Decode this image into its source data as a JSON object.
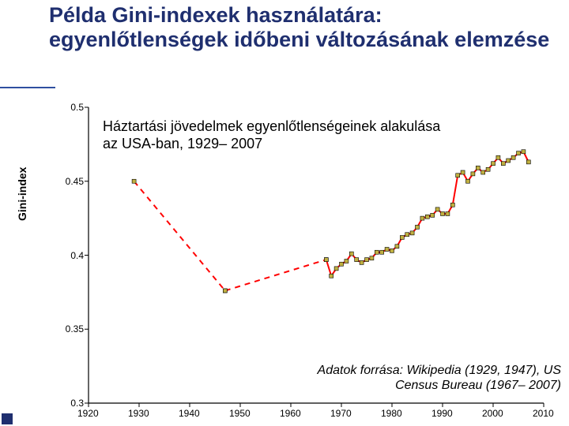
{
  "title": "Példa Gini-indexek használatára: egyenlőtlenségek időbeni változásának elemzése",
  "chart": {
    "type": "line-scatter",
    "ylabel": "Gini-index",
    "ylabel_fontsize": 14,
    "xlim": [
      1920,
      2010
    ],
    "ylim": [
      0.3,
      0.5
    ],
    "xticks": [
      1920,
      1930,
      1940,
      1950,
      1960,
      1970,
      1980,
      1990,
      2000,
      2010
    ],
    "yticks": [
      0.3,
      0.35,
      0.4,
      0.45,
      0.5
    ],
    "ytick_labels": [
      "0.3",
      "0.35",
      "0.4",
      "0.45",
      "0.5"
    ],
    "background_color": "#ffffff",
    "axis_color": "#000000",
    "tick_fontsize": 12,
    "subtitle": "Háztartási jövedelmek egyenlőtlenségeinek alakulása az USA-ban, 1929– 2007",
    "source_text": "Adatok forrása: Wikipedia (1929, 1947), US Census Bureau (1967– 2007)",
    "marker": {
      "shape": "square",
      "size": 5,
      "fill": "#c0b040",
      "stroke": "#000000",
      "stroke_width": 0.6
    },
    "segments": [
      {
        "style": "dashed",
        "color": "#ff0000",
        "width": 2,
        "points": [
          [
            1929,
            0.45
          ],
          [
            1947,
            0.376
          ]
        ]
      },
      {
        "style": "dashed",
        "color": "#ff0000",
        "width": 2,
        "points": [
          [
            1947,
            0.376
          ],
          [
            1967,
            0.397
          ]
        ]
      },
      {
        "style": "solid",
        "color": "#ff0000",
        "width": 2,
        "points": [
          [
            1967,
            0.397
          ],
          [
            1968,
            0.386
          ],
          [
            1969,
            0.391
          ],
          [
            1970,
            0.394
          ],
          [
            1971,
            0.396
          ],
          [
            1972,
            0.401
          ],
          [
            1973,
            0.397
          ],
          [
            1974,
            0.395
          ],
          [
            1975,
            0.397
          ],
          [
            1976,
            0.398
          ],
          [
            1977,
            0.402
          ],
          [
            1978,
            0.402
          ],
          [
            1979,
            0.404
          ],
          [
            1980,
            0.403
          ],
          [
            1981,
            0.406
          ],
          [
            1982,
            0.412
          ],
          [
            1983,
            0.414
          ],
          [
            1984,
            0.415
          ],
          [
            1985,
            0.419
          ],
          [
            1986,
            0.425
          ],
          [
            1987,
            0.426
          ],
          [
            1988,
            0.427
          ],
          [
            1989,
            0.431
          ],
          [
            1990,
            0.428
          ],
          [
            1991,
            0.428
          ],
          [
            1992,
            0.434
          ],
          [
            1993,
            0.454
          ],
          [
            1994,
            0.456
          ],
          [
            1995,
            0.45
          ],
          [
            1996,
            0.455
          ],
          [
            1997,
            0.459
          ],
          [
            1998,
            0.456
          ],
          [
            1999,
            0.458
          ],
          [
            2000,
            0.462
          ],
          [
            2001,
            0.466
          ],
          [
            2002,
            0.462
          ],
          [
            2003,
            0.464
          ],
          [
            2004,
            0.466
          ],
          [
            2005,
            0.469
          ],
          [
            2006,
            0.47
          ],
          [
            2007,
            0.463
          ]
        ]
      }
    ]
  }
}
